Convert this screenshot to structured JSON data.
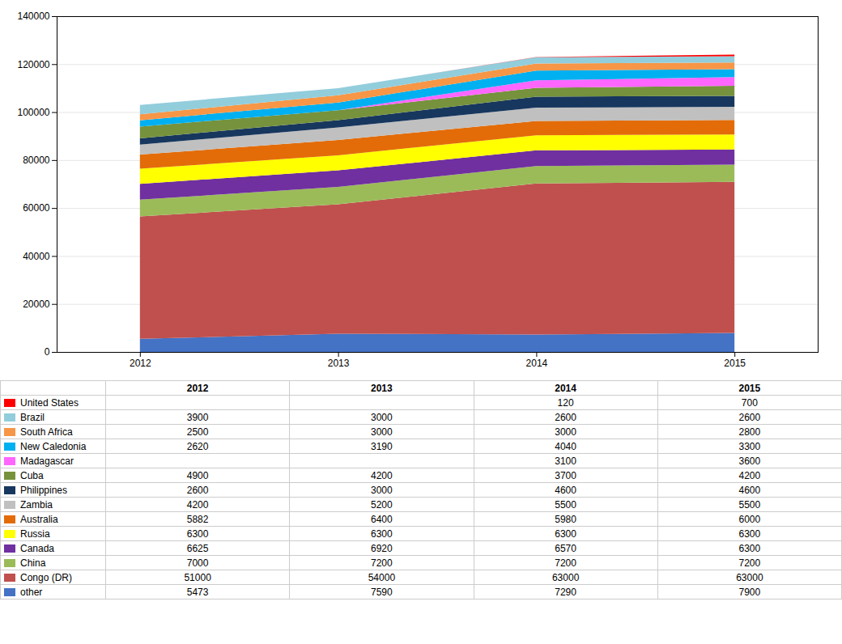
{
  "chart_data": {
    "type": "area",
    "stacked": true,
    "grid": true,
    "data_labels": true,
    "x": [
      2012,
      2013,
      2014,
      2015
    ],
    "xlim": [
      2011.58,
      2015.42
    ],
    "xticks": [
      2012,
      2013,
      2014,
      2015
    ],
    "ylim": [
      0,
      140000
    ],
    "yticks": [
      0,
      20000,
      40000,
      60000,
      80000,
      100000,
      120000,
      140000
    ],
    "series": [
      {
        "name": "other",
        "color": "#4472C4",
        "values": [
          5473,
          7590,
          7290,
          7900
        ]
      },
      {
        "name": "Congo (DR)",
        "color": "#C0504D",
        "values": [
          51000,
          54000,
          63000,
          63000
        ]
      },
      {
        "name": "China",
        "color": "#9BBB59",
        "values": [
          7000,
          7200,
          7200,
          7200
        ]
      },
      {
        "name": "Canada",
        "color": "#7030A0",
        "values": [
          6625,
          6920,
          6570,
          6300
        ]
      },
      {
        "name": "Russia",
        "color": "#FFFF00",
        "values": [
          6300,
          6300,
          6300,
          6300
        ]
      },
      {
        "name": "Australia",
        "color": "#E36C09",
        "values": [
          5882,
          6400,
          5980,
          6000
        ]
      },
      {
        "name": "Zambia",
        "color": "#C0C0C0",
        "values": [
          4200,
          5200,
          5500,
          5500
        ]
      },
      {
        "name": "Philippines",
        "color": "#17375E",
        "values": [
          2600,
          3000,
          4600,
          4600
        ]
      },
      {
        "name": "Cuba",
        "color": "#76923C",
        "values": [
          4900,
          4200,
          3700,
          4200
        ]
      },
      {
        "name": "Madagascar",
        "color": "#FF66FF",
        "values": [
          0,
          0,
          3100,
          3600
        ],
        "value_labels": [
          null,
          null,
          "3100",
          "3600"
        ]
      },
      {
        "name": "New Caledonia",
        "color": "#00B0F0",
        "values": [
          2620,
          3190,
          4040,
          3300
        ]
      },
      {
        "name": "South Africa",
        "color": "#F79646",
        "values": [
          2500,
          3000,
          3000,
          2800
        ]
      },
      {
        "name": "Brazil",
        "color": "#92CDDC",
        "values": [
          3900,
          3000,
          2600,
          2600
        ]
      },
      {
        "name": "United States",
        "color": "#FF0000",
        "values": [
          0,
          0,
          120,
          700
        ],
        "value_labels": [
          null,
          null,
          "120",
          "700"
        ]
      }
    ]
  }
}
